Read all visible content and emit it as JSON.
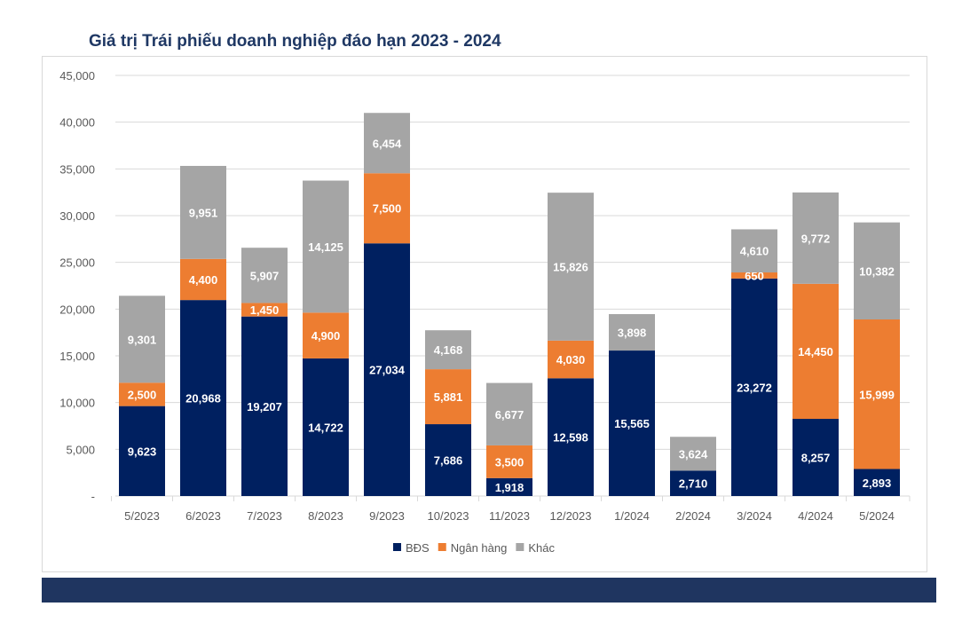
{
  "chart_data": {
    "type": "bar",
    "stacked": true,
    "title": "Giá trị Trái phiếu doanh nghiệp đáo hạn 2023 - 2024",
    "xlabel": "",
    "ylabel": "",
    "ylim": [
      0,
      45000
    ],
    "yticks": [
      0,
      5000,
      10000,
      15000,
      20000,
      25000,
      30000,
      35000,
      40000,
      45000
    ],
    "ytick_labels": [
      "-",
      "5,000",
      "10,000",
      "15,000",
      "20,000",
      "25,000",
      "30,000",
      "35,000",
      "40,000",
      "45,000"
    ],
    "grid": true,
    "legend_position": "bottom",
    "categories": [
      "5/2023",
      "6/2023",
      "7/2023",
      "8/2023",
      "9/2023",
      "10/2023",
      "11/2023",
      "12/2023",
      "1/2024",
      "2/2024",
      "3/2024",
      "4/2024",
      "5/2024"
    ],
    "series": [
      {
        "name": "BĐS",
        "color": "#002060",
        "values": [
          9623,
          20968,
          19207,
          14722,
          27034,
          7686,
          1918,
          12598,
          15565,
          2710,
          23272,
          8257,
          2893
        ]
      },
      {
        "name": "Ngân hàng",
        "color": "#ed7d31",
        "values": [
          2500,
          4400,
          1450,
          4900,
          7500,
          5881,
          3500,
          4030,
          0,
          0,
          650,
          14450,
          15999
        ]
      },
      {
        "name": "Khác",
        "color": "#a5a5a5",
        "values": [
          9301,
          9951,
          5907,
          14125,
          6454,
          4168,
          6677,
          15826,
          3898,
          3624,
          4610,
          9772,
          10382
        ]
      }
    ]
  }
}
